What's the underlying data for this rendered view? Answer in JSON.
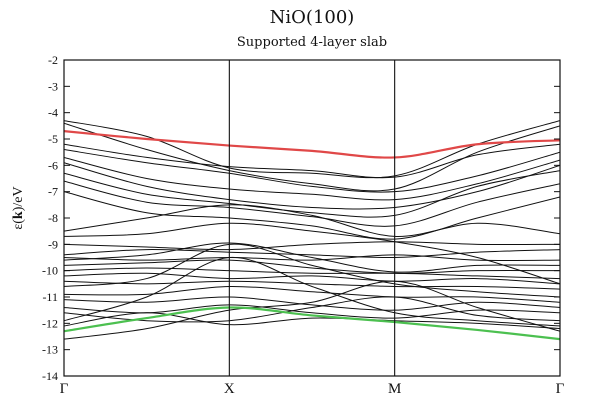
{
  "chart_data": {
    "type": "line",
    "title": "NiO(100)",
    "subtitle": "Supported 4-layer slab",
    "ylabel_main": "ε(",
    "ylabel_k": "k",
    "ylabel_tail": ")/eV",
    "xlabel": "",
    "ylim": [
      -14,
      -2
    ],
    "yticks": [
      -2,
      -3,
      -4,
      -5,
      -6,
      -7,
      -8,
      -9,
      -10,
      -11,
      -12,
      -13,
      -14
    ],
    "xlim": [
      0,
      3
    ],
    "xticks": [
      {
        "label": "Γ",
        "x": 0
      },
      {
        "label": "X",
        "x": 1
      },
      {
        "label": "M",
        "x": 2
      },
      {
        "label": "Γ",
        "x": 3
      }
    ],
    "colors": {
      "line": "#111111",
      "highlight_top": "#e04848",
      "highlight_bottom": "#4cc050",
      "axis": "#111111"
    },
    "legend": "none",
    "grid": false,
    "x": [
      0,
      0.5,
      1,
      1.5,
      2,
      2.5,
      3
    ],
    "series": [
      {
        "values": [
          -4.7,
          -5.0,
          -5.25,
          -5.45,
          -5.7,
          -5.2,
          -5.05
        ],
        "color": "#e04848",
        "highlight": true
      },
      {
        "values": [
          -12.3,
          -11.8,
          -11.4,
          -11.7,
          -11.95,
          -12.25,
          -12.6
        ],
        "color": "#4cc050",
        "highlight": true
      },
      {
        "values": [
          -4.3,
          -4.9,
          -6.1,
          -6.3,
          -6.4,
          -5.2,
          -4.3
        ]
      },
      {
        "values": [
          -4.4,
          -5.4,
          -6.2,
          -6.7,
          -6.9,
          -5.5,
          -4.5
        ]
      },
      {
        "values": [
          -5.2,
          -5.7,
          -6.05,
          -6.2,
          -6.45,
          -5.6,
          -5.2
        ]
      },
      {
        "values": [
          -5.4,
          -5.9,
          -6.3,
          -6.8,
          -7.0,
          -6.4,
          -5.5
        ]
      },
      {
        "values": [
          -5.7,
          -6.5,
          -6.9,
          -7.1,
          -7.3,
          -6.7,
          -5.8
        ]
      },
      {
        "values": [
          -5.9,
          -6.8,
          -7.3,
          -7.6,
          -7.6,
          -7.0,
          -6.0
        ]
      },
      {
        "values": [
          -6.3,
          -7.1,
          -7.45,
          -7.8,
          -7.9,
          -6.8,
          -6.2
        ]
      },
      {
        "values": [
          -6.6,
          -7.4,
          -7.6,
          -7.95,
          -8.3,
          -7.4,
          -6.7
        ]
      },
      {
        "values": [
          -7.0,
          -7.8,
          -8.0,
          -8.3,
          -8.8,
          -8.0,
          -7.2
        ]
      },
      {
        "values": [
          -8.5,
          -8.0,
          -7.5,
          -7.9,
          -8.7,
          -8.2,
          -8.6
        ]
      },
      {
        "values": [
          -8.7,
          -8.6,
          -8.2,
          -8.5,
          -8.9,
          -9.5,
          -10.5
        ]
      },
      {
        "values": [
          -9.0,
          -9.1,
          -9.2,
          -9.0,
          -8.9,
          -9.0,
          -9.0
        ]
      },
      {
        "values": [
          -9.4,
          -9.2,
          -9.3,
          -9.4,
          -9.5,
          -9.3,
          -9.2
        ]
      },
      {
        "values": [
          -9.5,
          -9.6,
          -9.5,
          -9.6,
          -9.4,
          -9.6,
          -9.6
        ]
      },
      {
        "values": [
          -9.6,
          -9.4,
          -8.95,
          -9.5,
          -10.05,
          -9.8,
          -9.8
        ]
      },
      {
        "values": [
          -9.8,
          -9.7,
          -9.6,
          -9.9,
          -10.1,
          -10.0,
          -10.0
        ]
      },
      {
        "values": [
          -10.0,
          -9.9,
          -10.0,
          -10.1,
          -10.1,
          -10.2,
          -10.3
        ]
      },
      {
        "values": [
          -10.2,
          -10.1,
          -10.3,
          -10.2,
          -10.4,
          -10.3,
          -10.5
        ]
      },
      {
        "values": [
          -10.4,
          -10.5,
          -10.4,
          -10.5,
          -10.6,
          -10.6,
          -10.7
        ]
      },
      {
        "values": [
          -10.6,
          -10.3,
          -9.0,
          -9.8,
          -10.5,
          -10.8,
          -11.0
        ]
      },
      {
        "values": [
          -10.9,
          -10.9,
          -10.6,
          -10.8,
          -11.0,
          -11.0,
          -11.2
        ]
      },
      {
        "values": [
          -11.1,
          -11.2,
          -11.0,
          -11.3,
          -11.5,
          -11.2,
          -11.4
        ]
      },
      {
        "values": [
          -11.4,
          -11.6,
          -11.3,
          -11.6,
          -11.8,
          -11.5,
          -11.6
        ]
      },
      {
        "values": [
          -11.6,
          -11.9,
          -11.9,
          -11.4,
          -11.0,
          -11.7,
          -11.9
        ]
      },
      {
        "values": [
          -11.9,
          -11.0,
          -9.5,
          -10.6,
          -11.6,
          -11.9,
          -12.1
        ]
      },
      {
        "values": [
          -12.1,
          -11.6,
          -12.05,
          -11.8,
          -11.9,
          -12.0,
          -12.2
        ]
      },
      {
        "values": [
          -12.6,
          -12.2,
          -11.5,
          -11.2,
          -10.4,
          -11.4,
          -12.3
        ]
      }
    ]
  }
}
